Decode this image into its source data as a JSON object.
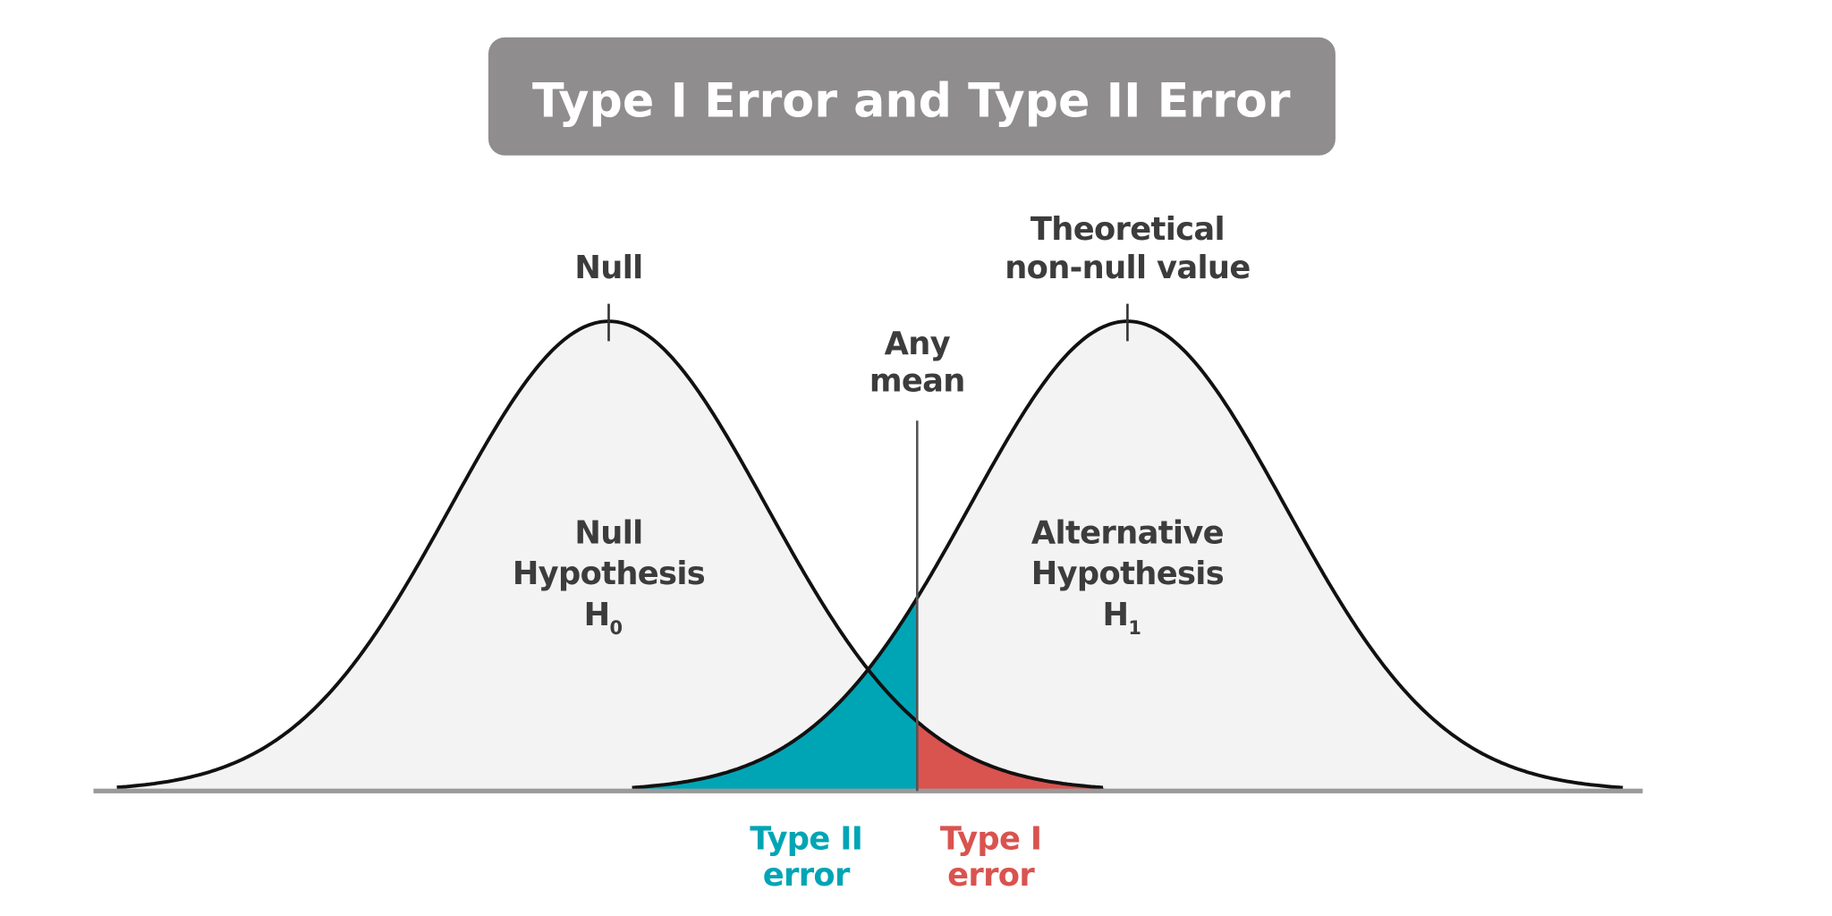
{
  "title": "Type I Error and Type II Error",
  "colors": {
    "title_box": "#8f8d8d",
    "curve_fill": "#f3f3f3",
    "type_ii": "#00a5b5",
    "type_i": "#d9534f",
    "text": "#3c3c3c"
  },
  "labels": {
    "null_top": "Null",
    "theoretical_line1": "Theoretical",
    "theoretical_line2": "non-null value",
    "any_mean_line1": "Any",
    "any_mean_line2": "mean",
    "null_hyp_line1": "Null",
    "null_hyp_line2": "Hypothesis",
    "null_hyp_symbol": "H",
    "null_hyp_sub": "0",
    "alt_hyp_line1": "Alternative",
    "alt_hyp_line2": "Hypothesis",
    "alt_hyp_symbol": "H",
    "alt_hyp_sub": "1",
    "type_ii_line1": "Type II",
    "type_ii_line2": "error",
    "type_i_line1": "Type I",
    "type_i_line2": "error"
  }
}
